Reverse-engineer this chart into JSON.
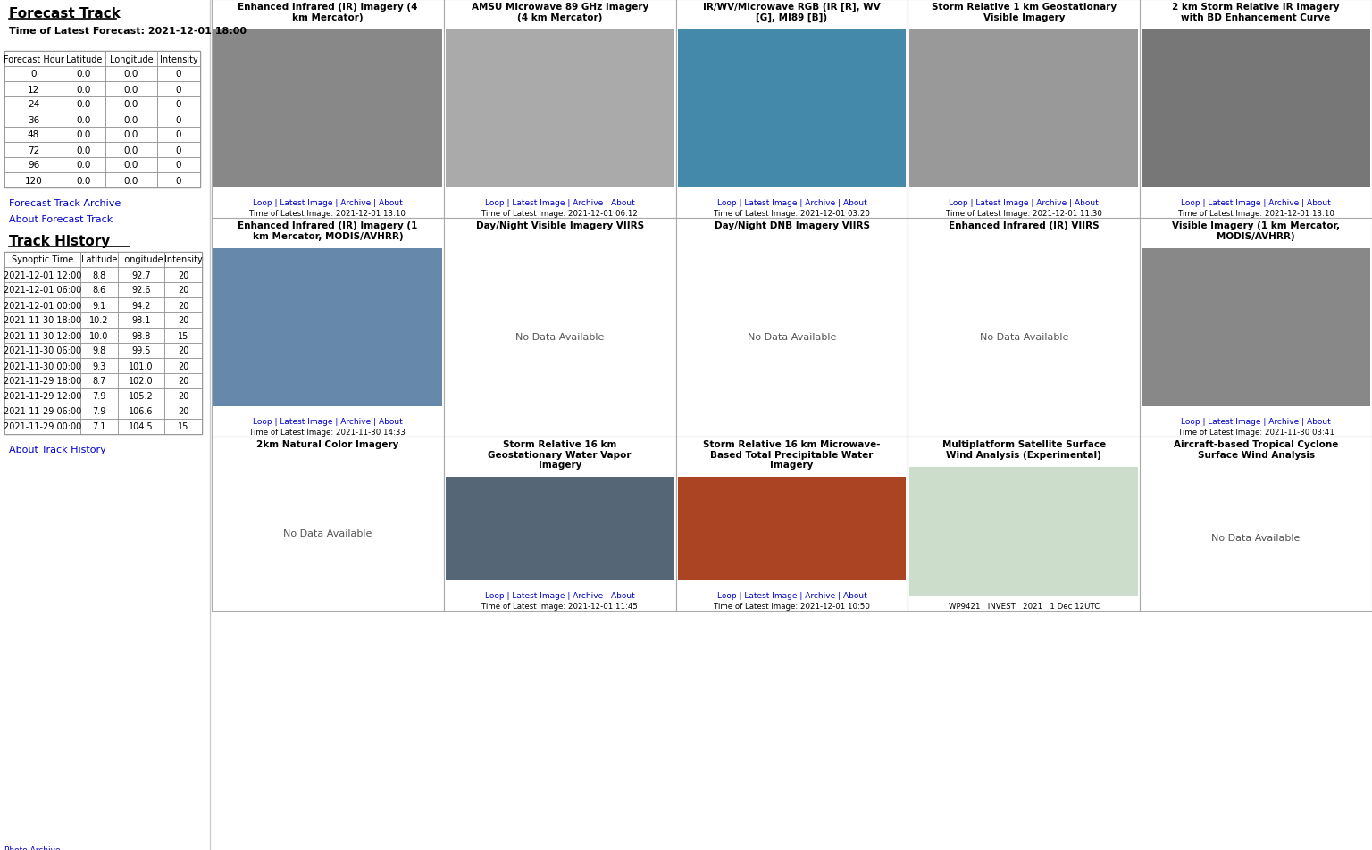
{
  "title": "Forecast Track",
  "forecast_time_label": "Time of Latest Forecast: 2021-12-01 18:00",
  "forecast_table_headers": [
    "Forecast Hour",
    "Latitude",
    "Longitude",
    "Intensity"
  ],
  "forecast_table_rows": [
    [
      0,
      0.0,
      0.0,
      0
    ],
    [
      12,
      0.0,
      0.0,
      0
    ],
    [
      24,
      0.0,
      0.0,
      0
    ],
    [
      36,
      0.0,
      0.0,
      0
    ],
    [
      48,
      0.0,
      0.0,
      0
    ],
    [
      72,
      0.0,
      0.0,
      0
    ],
    [
      96,
      0.0,
      0.0,
      0
    ],
    [
      120,
      0.0,
      0.0,
      0
    ]
  ],
  "link1": "Forecast Track Archive",
  "link2": "About Forecast Track",
  "track_history_title": "Track History",
  "track_history_headers": [
    "Synoptic Time",
    "Latitude",
    "Longitude",
    "Intensity"
  ],
  "track_history_rows": [
    [
      "2021-12-01 12:00",
      8.8,
      92.7,
      20
    ],
    [
      "2021-12-01 06:00",
      8.6,
      92.6,
      20
    ],
    [
      "2021-12-01 00:00",
      9.1,
      94.2,
      20
    ],
    [
      "2021-11-30 18:00",
      10.2,
      98.1,
      20
    ],
    [
      "2021-11-30 12:00",
      10.0,
      98.8,
      15
    ],
    [
      "2021-11-30 06:00",
      9.8,
      99.5,
      20
    ],
    [
      "2021-11-30 00:00",
      9.3,
      101.0,
      20
    ],
    [
      "2021-11-29 18:00",
      8.7,
      102.0,
      20
    ],
    [
      "2021-11-29 12:00",
      7.9,
      105.2,
      20
    ],
    [
      "2021-11-29 06:00",
      7.9,
      106.6,
      20
    ],
    [
      "2021-11-29 00:00",
      7.1,
      104.5,
      15
    ]
  ],
  "link3": "About Track History",
  "satellite_panels": [
    {
      "row": 0,
      "col": 0,
      "title": "Enhanced Infrared (IR) Imagery (4\nkm Mercator)",
      "has_image": true,
      "no_data_text": "",
      "links": "Loop | Latest Image | Archive | About",
      "time_label": "Time of Latest Image: 2021-12-01 13:10",
      "bg_color": "#888888"
    },
    {
      "row": 0,
      "col": 1,
      "title": "AMSU Microwave 89 GHz Imagery\n(4 km Mercator)",
      "has_image": true,
      "no_data_text": "",
      "links": "Loop | Latest Image | Archive | About",
      "time_label": "Time of Latest Image: 2021-12-01 06:12",
      "bg_color": "#aaaaaa"
    },
    {
      "row": 0,
      "col": 2,
      "title": "IR/WV/Microwave RGB (IR [R], WV\n[G], MI89 [B])",
      "has_image": true,
      "no_data_text": "",
      "links": "Loop | Latest Image | Archive | About",
      "time_label": "Time of Latest Image: 2021-12-01 03:20",
      "bg_color": "#4488aa"
    },
    {
      "row": 0,
      "col": 3,
      "title": "Storm Relative 1 km Geostationary\nVisible Imagery",
      "has_image": true,
      "no_data_text": "",
      "links": "Loop | Latest Image | Archive | About",
      "time_label": "Time of Latest Image: 2021-12-01 11:30",
      "bg_color": "#999999"
    },
    {
      "row": 0,
      "col": 4,
      "title": "2 km Storm Relative IR Imagery\nwith BD Enhancement Curve",
      "has_image": true,
      "no_data_text": "",
      "links": "Loop | Latest Image | Archive | About",
      "time_label": "Time of Latest Image: 2021-12-01 13:10",
      "bg_color": "#777777"
    },
    {
      "row": 1,
      "col": 0,
      "title": "Enhanced Infrared (IR) Imagery (1\nkm Mercator, MODIS/AVHRR)",
      "has_image": true,
      "no_data_text": "",
      "links": "Loop | Latest Image | Archive | About",
      "time_label": "Time of Latest Image: 2021-11-30 14:33",
      "bg_color": "#6688aa"
    },
    {
      "row": 1,
      "col": 1,
      "title": "Day/Night Visible Imagery VIIRS",
      "has_image": false,
      "no_data_text": "No Data Available",
      "links": "",
      "time_label": "",
      "bg_color": "#ffffff"
    },
    {
      "row": 1,
      "col": 2,
      "title": "Day/Night DNB Imagery VIIRS",
      "has_image": false,
      "no_data_text": "No Data Available",
      "links": "",
      "time_label": "",
      "bg_color": "#ffffff"
    },
    {
      "row": 1,
      "col": 3,
      "title": "Enhanced Infrared (IR) VIIRS",
      "has_image": false,
      "no_data_text": "No Data Available",
      "links": "",
      "time_label": "",
      "bg_color": "#ffffff"
    },
    {
      "row": 1,
      "col": 4,
      "title": "Visible Imagery (1 km Mercator,\nMODIS/AVHRR)",
      "has_image": true,
      "no_data_text": "",
      "links": "Loop | Latest Image | Archive | About",
      "time_label": "Time of Latest Image: 2021-11-30 03:41",
      "bg_color": "#888888"
    },
    {
      "row": 2,
      "col": 0,
      "title": "2km Natural Color Imagery",
      "has_image": false,
      "no_data_text": "No Data Available",
      "links": "",
      "time_label": "",
      "bg_color": "#ffffff"
    },
    {
      "row": 2,
      "col": 1,
      "title": "Storm Relative 16 km\nGeostationary Water Vapor\nImagery",
      "has_image": true,
      "no_data_text": "",
      "links": "Loop | Latest Image | Archive | About",
      "time_label": "Time of Latest Image: 2021-12-01 11:45",
      "bg_color": "#556677"
    },
    {
      "row": 2,
      "col": 2,
      "title": "Storm Relative 16 km Microwave-\nBased Total Precipitable Water\nImagery",
      "has_image": true,
      "no_data_text": "",
      "links": "Loop | Latest Image | Archive | About",
      "time_label": "Time of Latest Image: 2021-12-01 10:50",
      "bg_color": "#aa4422"
    },
    {
      "row": 2,
      "col": 3,
      "title": "Multiplatform Satellite Surface\nWind Analysis (Experimental)",
      "has_image": true,
      "no_data_text": "",
      "links": "",
      "time_label": "WP9421   INVEST   2021   1 Dec 12UTC",
      "bg_color": "#ccddcc"
    },
    {
      "row": 2,
      "col": 4,
      "title": "Aircraft-based Tropical Cyclone\nSurface Wind Analysis",
      "has_image": false,
      "no_data_text": "No Data Available",
      "links": "",
      "time_label": "",
      "bg_color": "#ffffff"
    }
  ],
  "bg_color": "#ffffff",
  "link_color": "#0000cc",
  "border_color": "#aaaaaa",
  "text_color": "#000000",
  "photo_archive_label": "Photo Archive"
}
